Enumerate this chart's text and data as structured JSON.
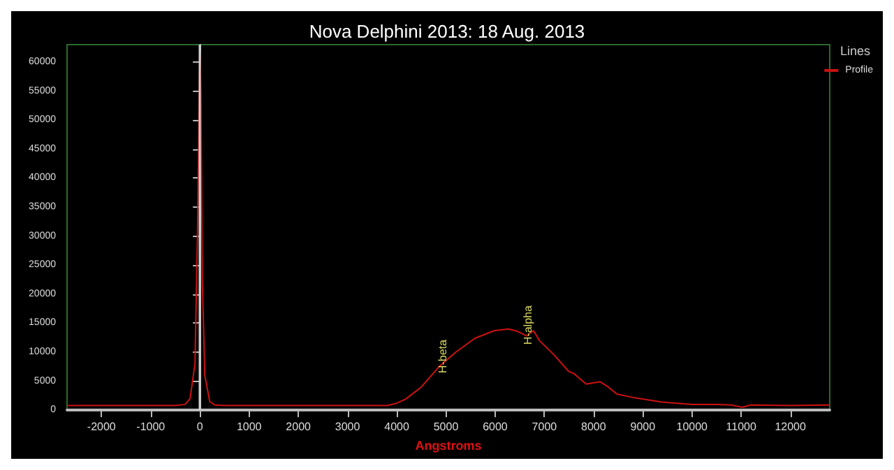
{
  "chart_data": {
    "type": "line",
    "title": "Nova Delphini 2013: 18 Aug. 2013",
    "xlabel": "Angstroms",
    "legend_title": "Lines",
    "legend": "top right",
    "grid": false,
    "marker": "none",
    "line_style": "solid",
    "xlim": [
      -2700,
      12800
    ],
    "xticks": [
      -2000,
      -1000,
      0,
      1000,
      2000,
      3000,
      4000,
      5000,
      6000,
      7000,
      8000,
      9000,
      10000,
      11000,
      12000
    ],
    "ylim": [
      0,
      63000
    ],
    "yticks": [
      0,
      5000,
      10000,
      15000,
      20000,
      25000,
      30000,
      35000,
      40000,
      45000,
      50000,
      55000,
      60000
    ],
    "ref_lines": [
      {
        "axis": "x",
        "value": 0,
        "color": "#d0d0d0"
      }
    ],
    "annotations": [
      {
        "text": "H-beta",
        "x": 5050,
        "y": 8300
      },
      {
        "text": "H-alpha",
        "x": 6780,
        "y": 13700
      }
    ],
    "series": [
      {
        "name": "Profile",
        "color": "#cc1111",
        "x": [
          -2700,
          -1000,
          -500,
          -300,
          -200,
          -100,
          -50,
          -20,
          0,
          20,
          50,
          100,
          200,
          300,
          500,
          2000,
          3000,
          3600,
          3810,
          4000,
          4180,
          4500,
          4860,
          5200,
          5590,
          5980,
          6270,
          6450,
          6640,
          6780,
          6900,
          7200,
          7490,
          7600,
          7850,
          8130,
          8300,
          8470,
          8800,
          9380,
          10000,
          10500,
          10800,
          11020,
          11200,
          12000,
          12800
        ],
        "values": [
          800,
          800,
          800,
          1000,
          2000,
          8000,
          30000,
          50000,
          61500,
          55000,
          22000,
          6000,
          1500,
          900,
          800,
          800,
          800,
          800,
          800,
          1200,
          1900,
          4000,
          7500,
          10000,
          12400,
          13700,
          14000,
          13600,
          12800,
          13700,
          12000,
          9500,
          6700,
          6300,
          4500,
          4900,
          4000,
          2800,
          2200,
          1400,
          1000,
          1000,
          900,
          500,
          900,
          800,
          900
        ]
      }
    ]
  }
}
